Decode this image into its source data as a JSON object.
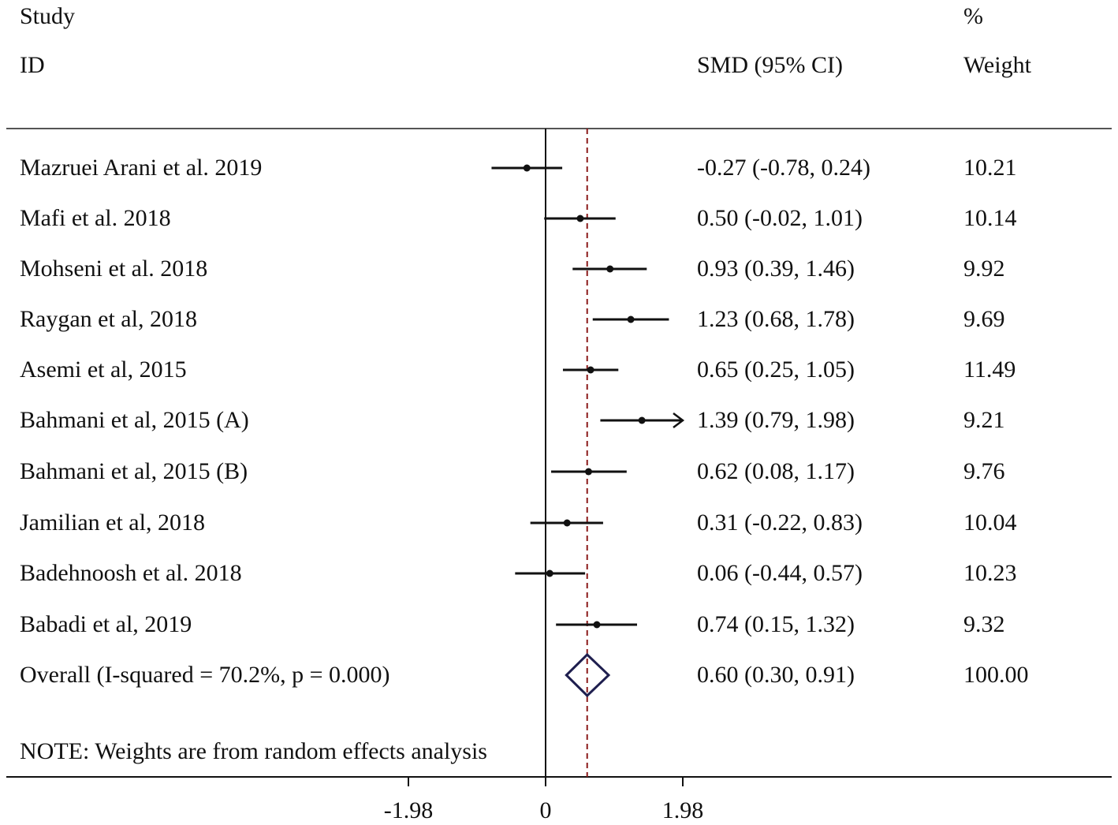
{
  "header": {
    "study": "Study",
    "id": "ID",
    "effect_label": "SMD (95% CI)",
    "percent": "%",
    "weight": "Weight"
  },
  "note": "NOTE: Weights are from random effects analysis",
  "chart_data": {
    "type": "forest",
    "measure": "SMD (95% CI)",
    "x_ticks": [
      -1.98,
      0,
      1.98
    ],
    "x_tick_labels": [
      "-1.98",
      "0",
      "1.98"
    ],
    "xlim": [
      -1.98,
      1.98
    ],
    "null_line": 0,
    "overall_line": 0.6,
    "studies": [
      {
        "label": "Mazruei Arani et al. 2019",
        "smd": -0.27,
        "lo": -0.78,
        "hi": 0.24,
        "ci_text": "-0.27 (-0.78, 0.24)",
        "weight": "10.21"
      },
      {
        "label": "Mafi et al. 2018",
        "smd": 0.5,
        "lo": -0.02,
        "hi": 1.01,
        "ci_text": "0.50 (-0.02, 1.01)",
        "weight": "10.14"
      },
      {
        "label": "Mohseni et al. 2018",
        "smd": 0.93,
        "lo": 0.39,
        "hi": 1.46,
        "ci_text": "0.93 (0.39, 1.46)",
        "weight": "9.92"
      },
      {
        "label": "Raygan et al, 2018",
        "smd": 1.23,
        "lo": 0.68,
        "hi": 1.78,
        "ci_text": "1.23 (0.68, 1.78)",
        "weight": "9.69"
      },
      {
        "label": "Asemi et al, 2015",
        "smd": 0.65,
        "lo": 0.25,
        "hi": 1.05,
        "ci_text": "0.65 (0.25, 1.05)",
        "weight": "11.49"
      },
      {
        "label": "Bahmani et al, 2015 (A)",
        "smd": 1.39,
        "lo": 0.79,
        "hi": 1.98,
        "ci_text": "1.39 (0.79, 1.98)",
        "weight": "9.21"
      },
      {
        "label": "Bahmani et al, 2015 (B)",
        "smd": 0.62,
        "lo": 0.08,
        "hi": 1.17,
        "ci_text": "0.62 (0.08, 1.17)",
        "weight": "9.76"
      },
      {
        "label": "Jamilian et al, 2018",
        "smd": 0.31,
        "lo": -0.22,
        "hi": 0.83,
        "ci_text": "0.31 (-0.22, 0.83)",
        "weight": "10.04"
      },
      {
        "label": "Badehnoosh et al. 2018",
        "smd": 0.06,
        "lo": -0.44,
        "hi": 0.57,
        "ci_text": "0.06 (-0.44, 0.57)",
        "weight": "10.23"
      },
      {
        "label": "Babadi et al, 2019",
        "smd": 0.74,
        "lo": 0.15,
        "hi": 1.32,
        "ci_text": "0.74 (0.15, 1.32)",
        "weight": "9.32"
      }
    ],
    "overall": {
      "label": "Overall  (I-squared = 70.2%, p = 0.000)",
      "smd": 0.6,
      "lo": 0.3,
      "hi": 0.91,
      "ci_text": "0.60 (0.30, 0.91)",
      "weight": "100.00"
    },
    "colors": {
      "line": "#111111",
      "overall_line": "#8b1a1a",
      "diamond": "#1f1f4f"
    }
  }
}
